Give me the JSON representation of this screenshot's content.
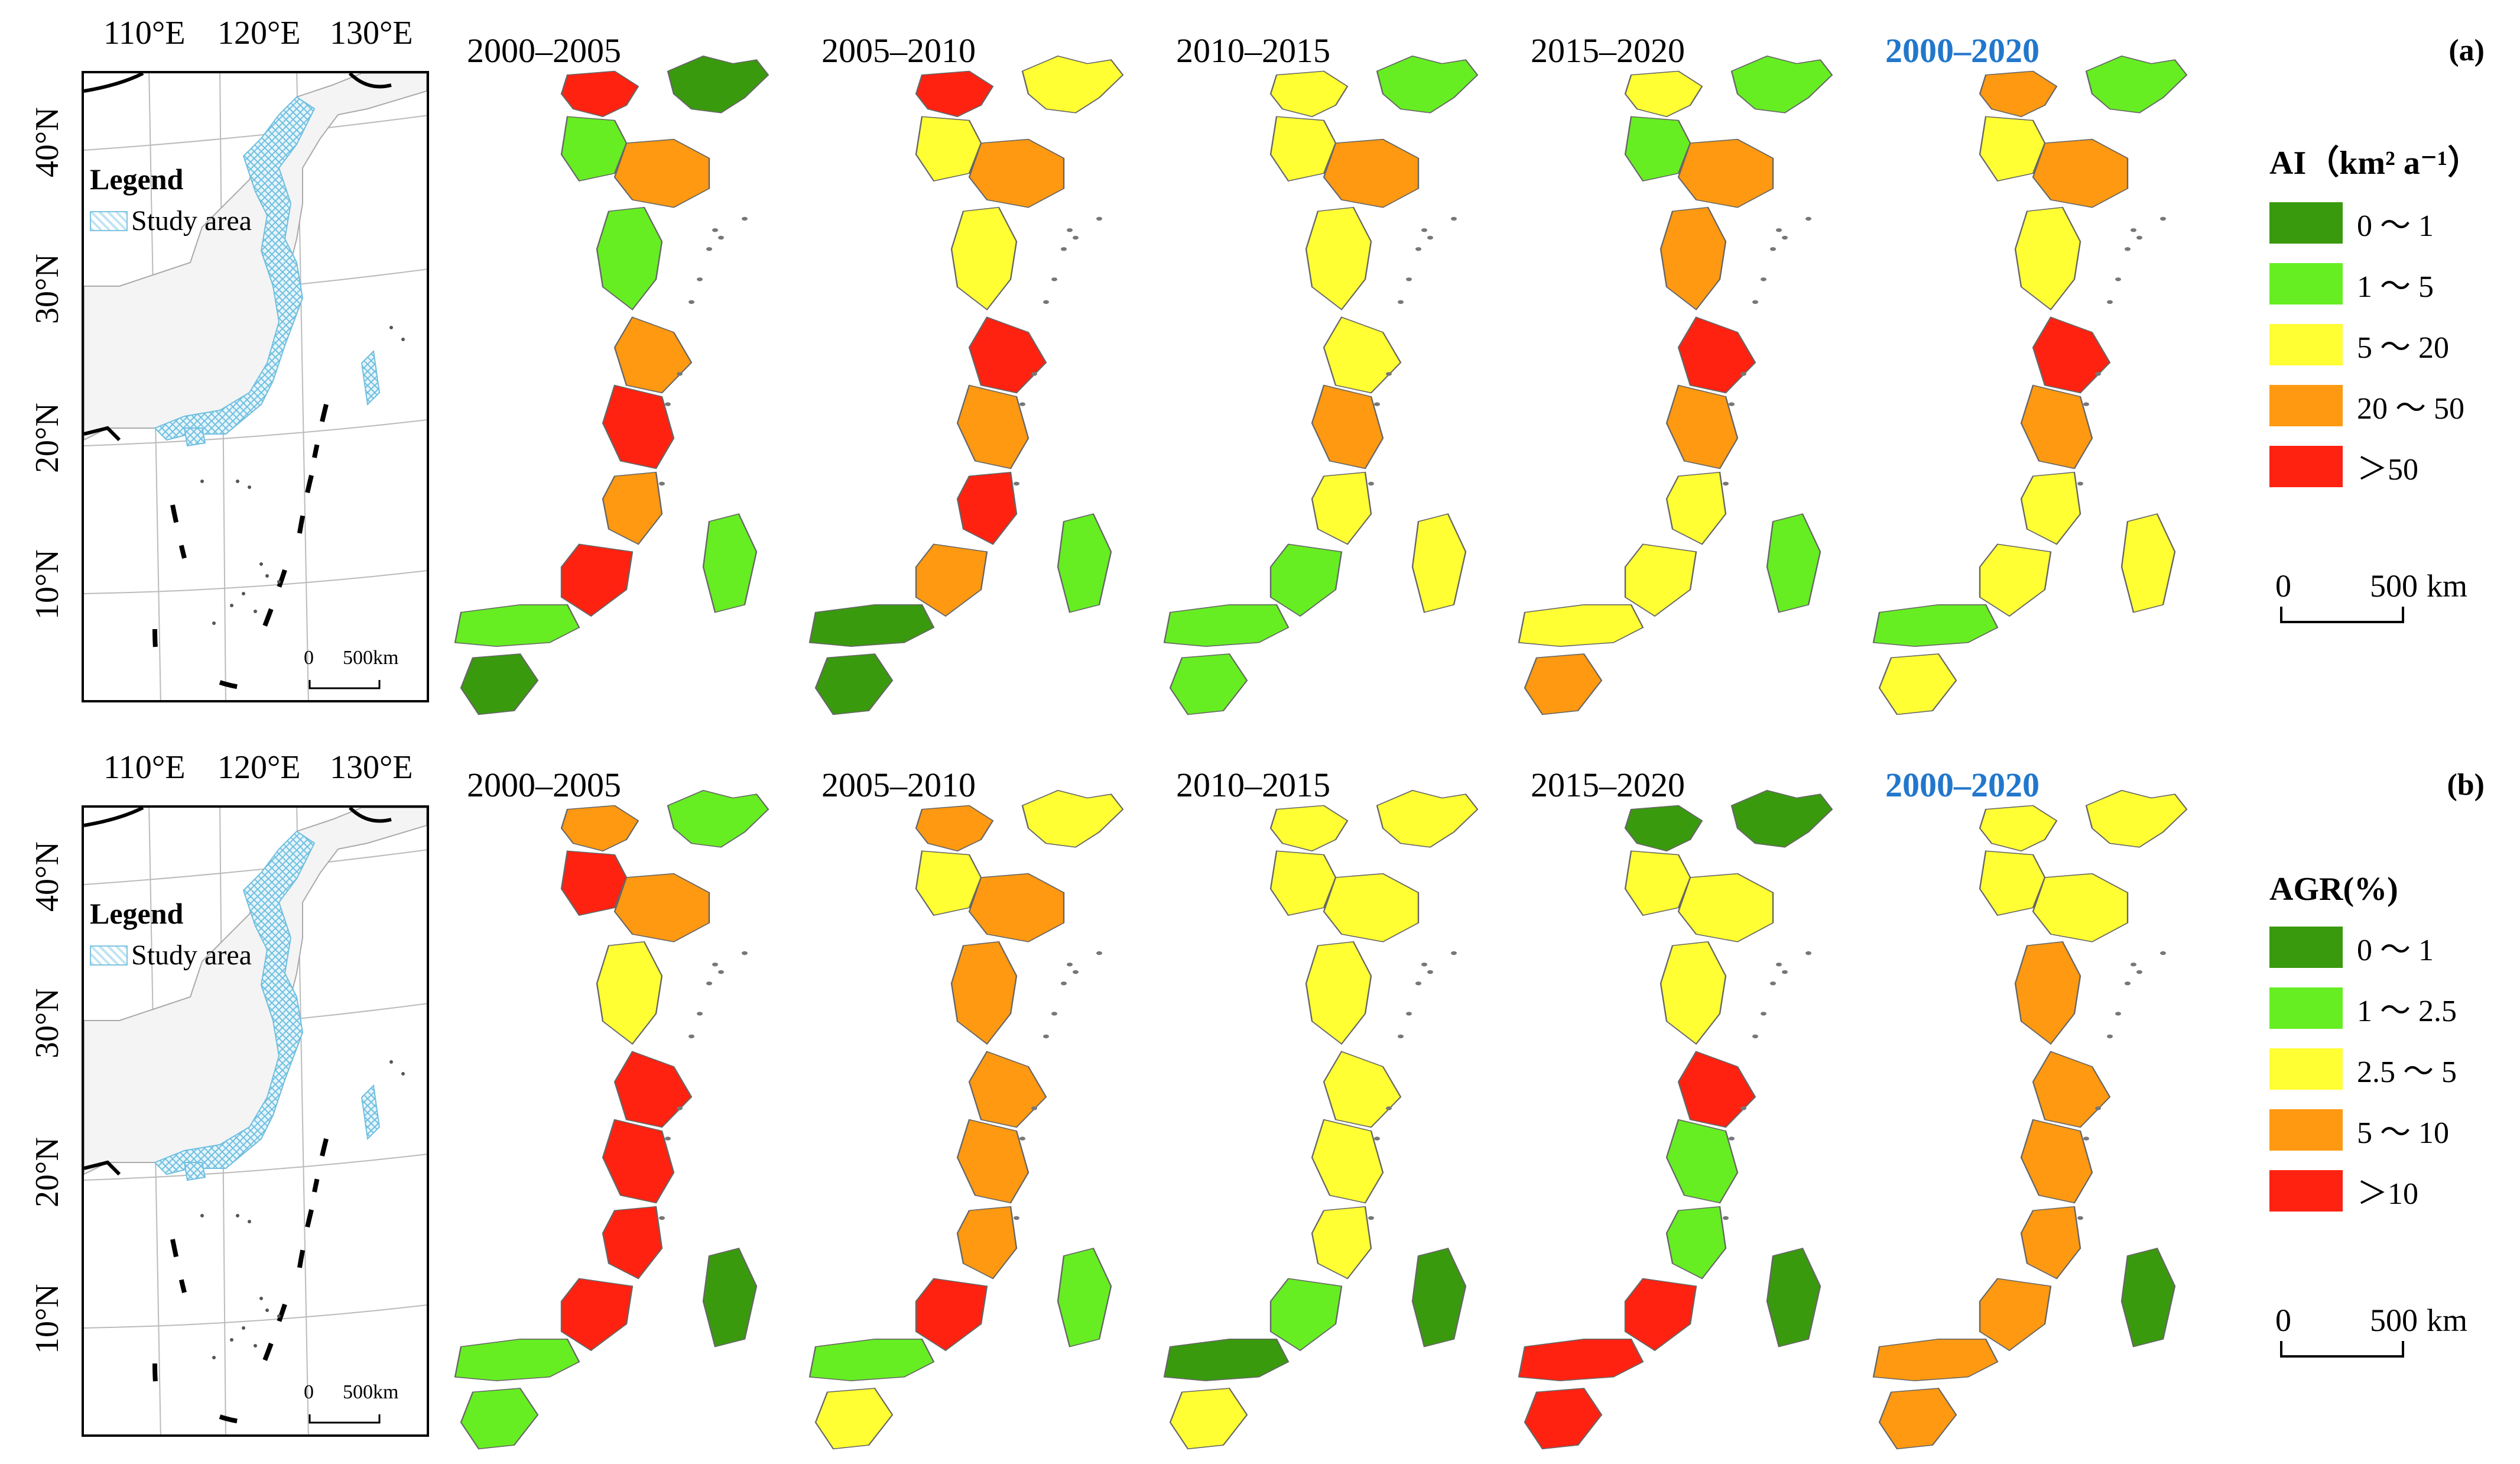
{
  "inset": {
    "lon_labels": [
      "110°E",
      "120°E",
      "130°E"
    ],
    "lat_labels": [
      "40°N",
      "30°N",
      "20°N",
      "10°N"
    ],
    "legend_title": "Legend",
    "legend_item": "Study area",
    "scale_zero": "0",
    "scale_end": "500km"
  },
  "panels": [
    {
      "id": "a",
      "letter": "(a)",
      "periods": [
        "2000–2005",
        "2005–2010",
        "2010–2015",
        "2015–2020",
        "2000–2020"
      ],
      "legend_title": "AI（km² a⁻¹）",
      "classes": [
        {
          "label": "0 ～ 1",
          "color": "#3a9a0e"
        },
        {
          "label": "1 ～ 5",
          "color": "#66ee22"
        },
        {
          "label": "5 ～ 20",
          "color": "#ffff33"
        },
        {
          "label": "20 ～ 50",
          "color": "#ff9911"
        },
        {
          "label": "＞50",
          "color": "#ff2211"
        }
      ],
      "scale_zero": "0",
      "scale_end": "500",
      "scale_unit": "km",
      "map_fills": [
        [
          "#3a9a0e",
          "#ff2211",
          "#66ee22",
          "#ff9911",
          "#66ee22",
          "#ff9911",
          "#ff2211",
          "#ff9911",
          "#ff2211",
          "#66ee22",
          "#3a9a0e",
          "#66ee22"
        ],
        [
          "#ffff33",
          "#ff2211",
          "#ffff33",
          "#ff9911",
          "#ffff33",
          "#ff2211",
          "#ff9911",
          "#ff2211",
          "#ff9911",
          "#3a9a0e",
          "#3a9a0e",
          "#66ee22"
        ],
        [
          "#66ee22",
          "#ffff33",
          "#ffff33",
          "#ff9911",
          "#ffff33",
          "#ffff33",
          "#ff9911",
          "#ffff33",
          "#66ee22",
          "#66ee22",
          "#66ee22",
          "#ffff33"
        ],
        [
          "#66ee22",
          "#ffff33",
          "#66ee22",
          "#ff9911",
          "#ff9911",
          "#ff2211",
          "#ff9911",
          "#ffff33",
          "#ffff33",
          "#ffff33",
          "#ff9911",
          "#66ee22"
        ],
        [
          "#66ee22",
          "#ff9911",
          "#ffff33",
          "#ff9911",
          "#ffff33",
          "#ff2211",
          "#ff9911",
          "#ffff33",
          "#ffff33",
          "#66ee22",
          "#ffff33",
          "#ffff33"
        ]
      ]
    },
    {
      "id": "b",
      "letter": "(b)",
      "periods": [
        "2000–2005",
        "2005–2010",
        "2010–2015",
        "2015–2020",
        "2000–2020"
      ],
      "legend_title": "AGR(%)",
      "classes": [
        {
          "label": "0 ～ 1",
          "color": "#3a9a0e"
        },
        {
          "label": "1 ～ 2.5",
          "color": "#66ee22"
        },
        {
          "label": "2.5 ～ 5",
          "color": "#ffff33"
        },
        {
          "label": "5 ～ 10",
          "color": "#ff9911"
        },
        {
          "label": "＞10",
          "color": "#ff2211"
        }
      ],
      "scale_zero": "0",
      "scale_end": "500",
      "scale_unit": "km",
      "map_fills": [
        [
          "#66ee22",
          "#ff9911",
          "#ff2211",
          "#ff9911",
          "#ffff33",
          "#ff2211",
          "#ff2211",
          "#ff2211",
          "#ff2211",
          "#66ee22",
          "#66ee22",
          "#3a9a0e"
        ],
        [
          "#ffff33",
          "#ff9911",
          "#ffff33",
          "#ff9911",
          "#ff9911",
          "#ff9911",
          "#ff9911",
          "#ff9911",
          "#ff2211",
          "#66ee22",
          "#ffff33",
          "#66ee22"
        ],
        [
          "#ffff33",
          "#ffff33",
          "#ffff33",
          "#ffff33",
          "#ffff33",
          "#ffff33",
          "#ffff33",
          "#ffff33",
          "#66ee22",
          "#3a9a0e",
          "#ffff33",
          "#3a9a0e"
        ],
        [
          "#3a9a0e",
          "#3a9a0e",
          "#ffff33",
          "#ffff33",
          "#ffff33",
          "#ff2211",
          "#66ee22",
          "#66ee22",
          "#ff2211",
          "#ff2211",
          "#ff2211",
          "#3a9a0e"
        ],
        [
          "#ffff33",
          "#ffff33",
          "#ffff33",
          "#ffff33",
          "#ff9911",
          "#ff9911",
          "#ff9911",
          "#ff9911",
          "#ff9911",
          "#ff9911",
          "#ff9911",
          "#3a9a0e"
        ]
      ]
    }
  ]
}
